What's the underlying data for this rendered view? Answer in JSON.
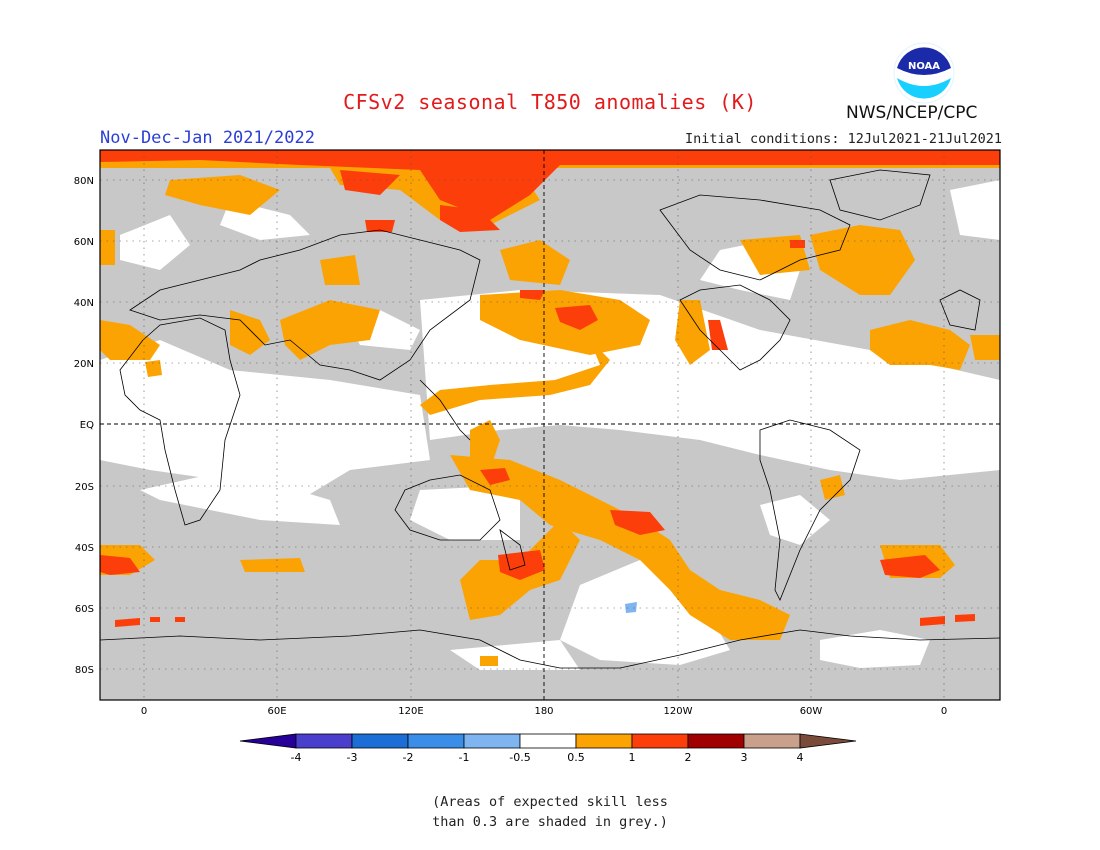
{
  "header": {
    "title": "CFSv2 seasonal T850 anomalies (K)",
    "season": "Nov-Dec-Jan 2021/2022",
    "initial_conditions": "Initial conditions: 12Jul2021-21Jul2021",
    "agency": "NWS/NCEP/CPC",
    "logo_text": "NOAA"
  },
  "map": {
    "lat_labels": [
      "80N",
      "60N",
      "40N",
      "20N",
      "EQ",
      "20S",
      "40S",
      "60S",
      "80S"
    ],
    "lon_labels": [
      "0",
      "60E",
      "120E",
      "180",
      "120W",
      "60W",
      "0"
    ],
    "colors": {
      "skill_grey": "#c8c8c8",
      "land_outline": "#000000",
      "anom_0_5_1": "#fca304",
      "anom_1_2": "#fc3e0b",
      "anom_neg_0_5_1": "#7eb5f0"
    }
  },
  "legend": {
    "labels": [
      "-4",
      "-3",
      "-2",
      "-1",
      "-0.5",
      "0.5",
      "1",
      "2",
      "3",
      "4"
    ],
    "colors": [
      "#27009a",
      "#4a3fcd",
      "#1c6dd6",
      "#3a8ee8",
      "#7eb5f0",
      "#ffffff",
      "#fca304",
      "#fc3e0b",
      "#a00000",
      "#c8a08c",
      "#7a4b3a"
    ]
  },
  "note": {
    "line1": "(Areas of expected skill less",
    "line2": "than 0.3 are shaded in grey.)"
  }
}
